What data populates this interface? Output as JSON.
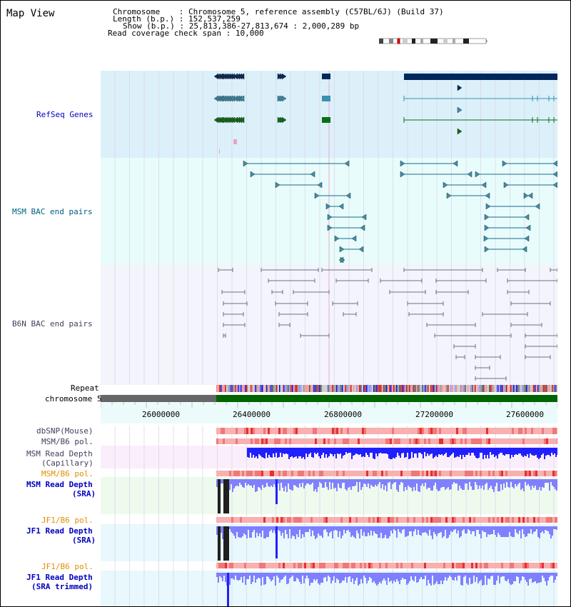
{
  "page_title": "Map View",
  "info": {
    "chromosome_label": "Chromosome",
    "chromosome_value": "Chromosome 5, reference assembly (C57BL/6J) (Build 37)",
    "length_label": "Length (b.p.)",
    "length_value": "152,537,259",
    "show_label": "Show (b.p.)",
    "show_value": "25,813,386-27,813,674 : 2,000,289 bp",
    "read_cov_label": "Read coverage check span",
    "read_cov_value": "10,000"
  },
  "tracks": {
    "refseq": "RefSeq Genes",
    "msm_bac": "MSM BAC end pairs",
    "b6n_bac": "B6N BAC end pairs",
    "repeat": "Repeat",
    "chromosome": "chromosome 5"
  },
  "ruler": {
    "ticks": [
      "26000000",
      "26400000",
      "26800000",
      "27200000",
      "27600000"
    ]
  },
  "lower_tracks": {
    "dbsnp": "dbSNP(Mouse)",
    "msm_b6_pol_1": "MSM/B6 pol.",
    "msm_read_depth_cap_1": "MSM Read Depth",
    "msm_read_depth_cap_2": "(Capillary)",
    "msm_b6_pol_2": "MSM/B6 pol.",
    "msm_read_depth_sra_1": "MSM Read Depth",
    "msm_read_depth_sra_2": "(SRA)",
    "jf1_b6_pol_1": "JF1/B6 pol.",
    "jf1_read_depth_1": "JF1 Read Depth",
    "jf1_read_depth_2": "(SRA)",
    "jf1_b6_pol_2": "JF1/B6 pol.",
    "jf1_read_depth_trim_1": "JF1 Read Depth",
    "jf1_read_depth_trim_2": "(SRA trimmed)"
  },
  "colors": {
    "refseq_bg": "#dcf0fa",
    "msm_bac_bg": "#e8fcfc",
    "b6n_bac_bg": "#f4f4fc",
    "refseq_label": "#0000c0",
    "msm_label": "#006080",
    "b6n_label": "#404060",
    "orange_label": "#e09000",
    "blue_label": "#0000c0",
    "chrom_green": "#006400",
    "depth_blue": "#2020ff"
  }
}
